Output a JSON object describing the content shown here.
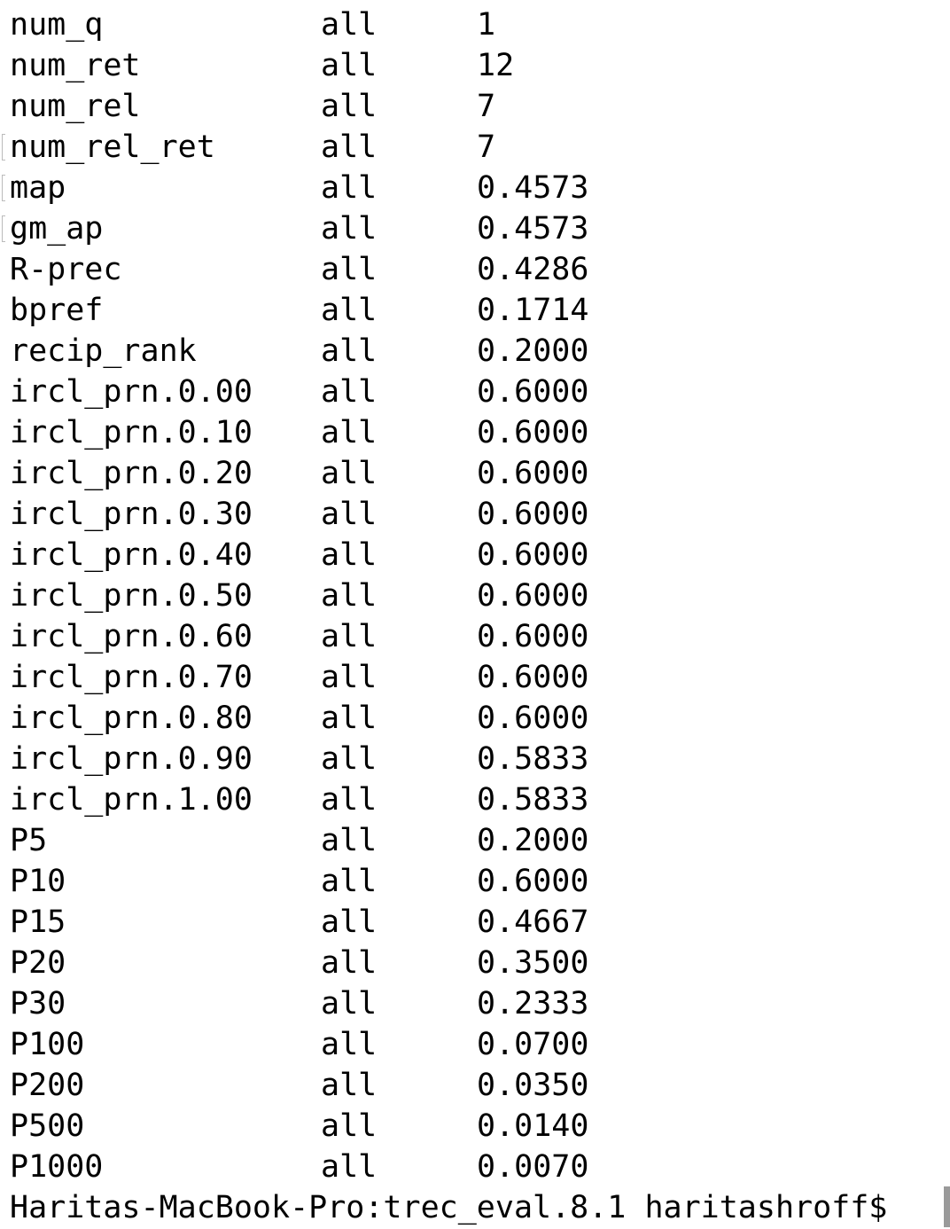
{
  "terminal": {
    "rows": [
      {
        "measure": "num_q",
        "query": "all",
        "value": "1"
      },
      {
        "measure": "num_ret",
        "query": "all",
        "value": "12"
      },
      {
        "measure": "num_rel",
        "query": "all",
        "value": "7"
      },
      {
        "measure": "num_rel_ret",
        "query": "all",
        "value": "7",
        "marked": true
      },
      {
        "measure": "map",
        "query": "all",
        "value": "0.4573",
        "marked": true
      },
      {
        "measure": "gm_ap",
        "query": "all",
        "value": "0.4573",
        "marked": true
      },
      {
        "measure": "R-prec",
        "query": "all",
        "value": "0.4286"
      },
      {
        "measure": "bpref",
        "query": "all",
        "value": "0.1714"
      },
      {
        "measure": "recip_rank",
        "query": "all",
        "value": "0.2000"
      },
      {
        "measure": "ircl_prn.0.00",
        "query": "all",
        "value": "0.6000"
      },
      {
        "measure": "ircl_prn.0.10",
        "query": "all",
        "value": "0.6000"
      },
      {
        "measure": "ircl_prn.0.20",
        "query": "all",
        "value": "0.6000"
      },
      {
        "measure": "ircl_prn.0.30",
        "query": "all",
        "value": "0.6000"
      },
      {
        "measure": "ircl_prn.0.40",
        "query": "all",
        "value": "0.6000"
      },
      {
        "measure": "ircl_prn.0.50",
        "query": "all",
        "value": "0.6000"
      },
      {
        "measure": "ircl_prn.0.60",
        "query": "all",
        "value": "0.6000"
      },
      {
        "measure": "ircl_prn.0.70",
        "query": "all",
        "value": "0.6000"
      },
      {
        "measure": "ircl_prn.0.80",
        "query": "all",
        "value": "0.6000"
      },
      {
        "measure": "ircl_prn.0.90",
        "query": "all",
        "value": "0.5833"
      },
      {
        "measure": "ircl_prn.1.00",
        "query": "all",
        "value": "0.5833"
      },
      {
        "measure": "P5",
        "query": "all",
        "value": "0.2000"
      },
      {
        "measure": "P10",
        "query": "all",
        "value": "0.6000"
      },
      {
        "measure": "P15",
        "query": "all",
        "value": "0.4667"
      },
      {
        "measure": "P20",
        "query": "all",
        "value": "0.3500"
      },
      {
        "measure": "P30",
        "query": "all",
        "value": "0.2333"
      },
      {
        "measure": "P100",
        "query": "all",
        "value": "0.0700"
      },
      {
        "measure": "P200",
        "query": "all",
        "value": "0.0350"
      },
      {
        "measure": "P500",
        "query": "all",
        "value": "0.0140"
      },
      {
        "measure": "P1000",
        "query": "all",
        "value": "0.0070"
      }
    ],
    "prompt": "Haritas-MacBook-Pro:trec_eval.8.1 haritashroff$"
  }
}
